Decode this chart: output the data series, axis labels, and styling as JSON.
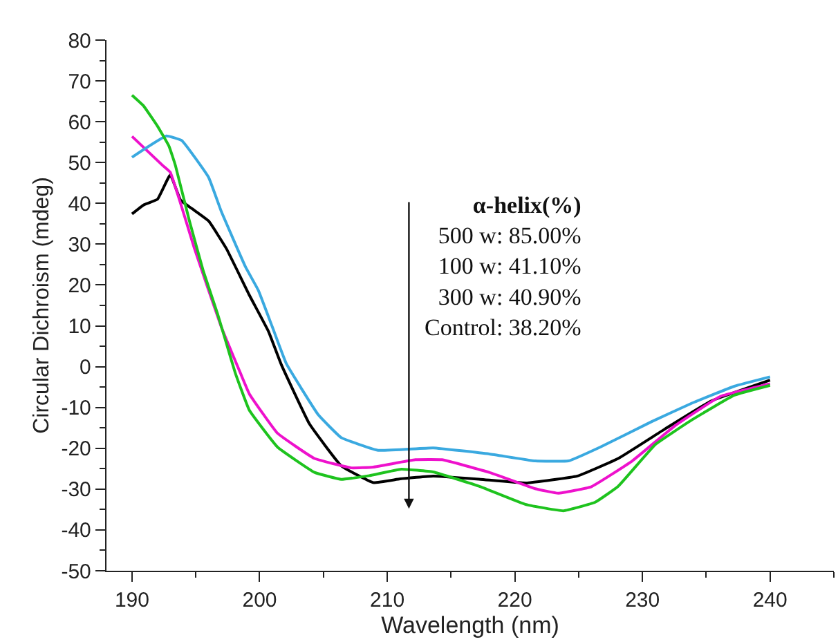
{
  "chart_data": {
    "type": "line",
    "xlabel": "Wavelength (nm)",
    "ylabel": "Circular Dichroism (mdeg)",
    "xlim": [
      188,
      245
    ],
    "xticks": [
      190,
      200,
      210,
      220,
      230,
      240
    ],
    "ylim": [
      -50,
      80
    ],
    "yticks": [
      -50,
      -40,
      -30,
      -20,
      -10,
      0,
      10,
      20,
      30,
      40,
      50,
      60,
      70,
      80
    ],
    "grid": false,
    "marker": "none",
    "line_style": "solid",
    "annotations": [
      "α-helix(%)\n500 w: 85.00%\n100 w: 41.10%\n300 w: 40.90%\nControl: 38.20%"
    ],
    "series": [
      {
        "color": "#000000",
        "x": [
          190,
          190.9,
          192,
          193,
          193.8,
          194.7,
          196,
          197.4,
          199.2,
          200.7,
          201.7,
          203.9,
          206.4,
          208.9,
          211,
          213.6,
          217.3,
          220.9,
          224.9,
          228.1,
          231.8,
          235.4,
          240
        ],
        "values": [
          37.4,
          39.6,
          41,
          47,
          40.8,
          38.7,
          35.7,
          28.9,
          17.5,
          8.6,
          0.5,
          -14,
          -24.3,
          -28.4,
          -27.5,
          -26.8,
          -27.6,
          -28.5,
          -26.8,
          -22.5,
          -15.2,
          -8.4,
          -3.3
        ]
      },
      {
        "color": "#ee11cc",
        "x": [
          190,
          192.4,
          193,
          194.9,
          197,
          198.5,
          199.2,
          201.4,
          204.3,
          207.2,
          208.9,
          212.2,
          214.3,
          218,
          221.6,
          223.4,
          226,
          229.2,
          232.5,
          236.1,
          240
        ],
        "values": [
          56.4,
          49.3,
          47.6,
          28.9,
          9.7,
          -1.6,
          -6.7,
          -16.3,
          -22.5,
          -24.8,
          -24.6,
          -22.8,
          -22.8,
          -25.9,
          -29.9,
          -31,
          -29.4,
          -23.1,
          -14.6,
          -7.3,
          -4.2
        ]
      },
      {
        "color": "#3aa9e0",
        "x": [
          190,
          192.7,
          193.9,
          196,
          197,
          198.9,
          199.9,
          201,
          202.1,
          204.6,
          206.4,
          209.3,
          213.6,
          218,
          221.6,
          224.2,
          226.7,
          230.7,
          233.9,
          237.2,
          240
        ],
        "values": [
          51.3,
          56.5,
          55.4,
          46.4,
          38,
          24.4,
          18.7,
          9.7,
          0.7,
          -11.8,
          -17.4,
          -20.5,
          -19.9,
          -21.4,
          -23.1,
          -23.1,
          -19.7,
          -13.5,
          -8.9,
          -4.8,
          -2.5
        ]
      },
      {
        "color": "#1ec31e",
        "x": [
          190,
          190.9,
          192,
          192.9,
          193.4,
          194.5,
          195.6,
          196.7,
          198.1,
          199.2,
          201.4,
          204.3,
          206.4,
          208.6,
          211.1,
          213.6,
          217.3,
          220.9,
          223.8,
          226.3,
          228.1,
          231,
          233.9,
          237.2,
          240
        ],
        "values": [
          66.5,
          63.9,
          58.9,
          54,
          49.3,
          35.7,
          23.3,
          13,
          -1.6,
          -10.7,
          -19.7,
          -25.9,
          -27.6,
          -26.7,
          -25.1,
          -25.8,
          -29.4,
          -33.8,
          -35.3,
          -33.2,
          -29.3,
          -19.1,
          -13,
          -7,
          -4.6
        ]
      }
    ]
  }
}
